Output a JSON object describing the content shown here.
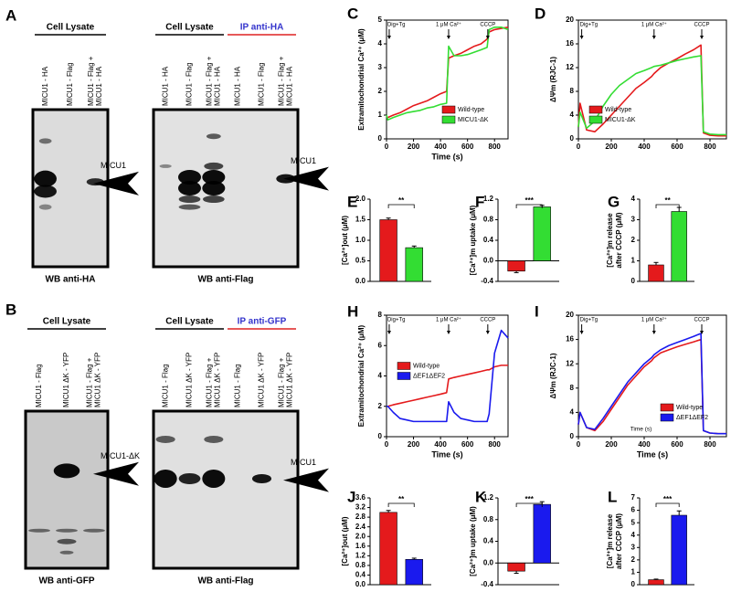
{
  "blots": [
    {
      "label": "A",
      "panels": [
        {
          "headers": [
            {
              "text": "Cell Lysate",
              "color": "#000000",
              "underline": "#000000"
            }
          ],
          "lanes": [
            [
              "MICU1 - HA"
            ],
            [
              "MICU1 - Flag"
            ],
            [
              "MICU1 - Flag +",
              "MICU1 - HA"
            ]
          ],
          "band_label": "MICU1",
          "caption": "WB anti-HA"
        },
        {
          "headers": [
            {
              "text": "Cell Lysate",
              "color": "#000000",
              "underline": "#000000"
            },
            {
              "text": "IP anti-HA",
              "color": "#3333cc",
              "underline": "#dd2222"
            }
          ],
          "lanes": [
            [
              "MICU1 - HA"
            ],
            [
              "MICU1 - Flag"
            ],
            [
              "MICU1 - Flag +",
              "MICU1 - HA"
            ],
            [
              "MICU1 - HA"
            ],
            [
              "MICU1 - Flag"
            ],
            [
              "MICU1 - Flag +",
              "MICU1 - HA"
            ]
          ],
          "band_label": "MICU1",
          "caption": "WB anti-Flag"
        }
      ]
    },
    {
      "label": "B",
      "panels": [
        {
          "headers": [
            {
              "text": "Cell Lysate",
              "color": "#000000",
              "underline": "#000000"
            }
          ],
          "lanes": [
            [
              "MICU1 - Flag"
            ],
            [
              "MICU1 ΔK - YFP"
            ],
            [
              "MICU1 - Flag +",
              "MICU1 ΔK - YFP"
            ]
          ],
          "band_label": "MICU1-ΔK",
          "caption": "WB anti-GFP"
        },
        {
          "headers": [
            {
              "text": "Cell Lysate",
              "color": "#000000",
              "underline": "#000000"
            },
            {
              "text": "IP anti-GFP",
              "color": "#3333cc",
              "underline": "#dd2222"
            }
          ],
          "lanes": [
            [
              "MICU1 - Flag"
            ],
            [
              "MICU1 ΔK - YFP"
            ],
            [
              "MICU1 - Flag +",
              "MICU1 ΔK - YFP"
            ],
            [
              "MICU1 - Flag"
            ],
            [
              "MICU1 ΔK - YFP"
            ],
            [
              "MICU1 - Flag +",
              "MICU1 ΔK - YFP"
            ]
          ],
          "band_label": "MICU1",
          "caption": "WB anti-Flag"
        }
      ]
    }
  ],
  "chart_data": [
    {
      "type": "line",
      "label": "C",
      "xlabel": "Time (s)",
      "ylabel": "Extramitochondrial Ca²⁺ (μM)",
      "xlim": [
        0,
        900
      ],
      "xticks": [
        0,
        200,
        400,
        600,
        800
      ],
      "ylim": [
        0,
        5
      ],
      "yticks": [
        0,
        1,
        2,
        3,
        4,
        5
      ],
      "x": [
        0,
        10,
        50,
        100,
        150,
        200,
        250,
        300,
        350,
        400,
        445,
        460,
        500,
        550,
        600,
        650,
        700,
        745,
        760,
        800,
        850,
        900
      ],
      "series": [
        {
          "name": "Wild-type",
          "color": "#e41a1c",
          "values": [
            0.9,
            0.9,
            1.0,
            1.1,
            1.25,
            1.4,
            1.5,
            1.6,
            1.75,
            1.9,
            2.0,
            3.4,
            3.5,
            3.6,
            3.75,
            3.9,
            4.0,
            4.2,
            4.5,
            4.6,
            4.65,
            4.7
          ]
        },
        {
          "name": "MICU1-ΔK",
          "color": "#33dd33",
          "values": [
            1.0,
            0.8,
            0.9,
            1.0,
            1.1,
            1.15,
            1.2,
            1.3,
            1.35,
            1.45,
            1.5,
            3.9,
            3.5,
            3.5,
            3.55,
            3.65,
            3.75,
            3.85,
            4.6,
            4.7,
            4.7,
            4.6
          ]
        }
      ],
      "events": [
        {
          "label": "Dig+Tg",
          "x": 20
        },
        {
          "label": "1 μM Ca²⁺",
          "x": 460
        },
        {
          "label": "CCCP",
          "x": 750
        }
      ],
      "legend": "lower right"
    },
    {
      "type": "line",
      "label": "D",
      "ylabel": "ΔΨm (RJC-1)",
      "xlim": [
        0,
        900
      ],
      "xticks": [
        0,
        200,
        400,
        600,
        800
      ],
      "ylim": [
        0,
        20
      ],
      "yticks": [
        0,
        4,
        8,
        12,
        16,
        20
      ],
      "x": [
        0,
        10,
        50,
        100,
        150,
        200,
        250,
        300,
        350,
        400,
        445,
        460,
        500,
        550,
        600,
        650,
        700,
        745,
        760,
        800,
        850,
        900
      ],
      "series": [
        {
          "name": "Wild-type",
          "color": "#e41a1c",
          "values": [
            2,
            6,
            1.5,
            1.2,
            2.5,
            4,
            5.5,
            7,
            8.5,
            9.5,
            10.5,
            11,
            12,
            12.8,
            13.5,
            14.3,
            15,
            15.8,
            1,
            0.6,
            0.5,
            0.5
          ]
        },
        {
          "name": "MICU1-ΔK",
          "color": "#33dd33",
          "values": [
            2,
            4.5,
            1.8,
            3,
            5.5,
            7.5,
            9,
            10,
            11,
            11.5,
            12,
            12.2,
            12.4,
            12.8,
            13.2,
            13.5,
            13.8,
            14,
            1.2,
            0.8,
            0.7,
            0.7
          ]
        }
      ],
      "events": [
        {
          "label": "Dig+Tg",
          "x": 20
        },
        {
          "label": "1 μM Ca²⁺",
          "x": 460
        },
        {
          "label": "CCCP",
          "x": 750
        }
      ],
      "legend": "lower left"
    },
    {
      "type": "bar",
      "label": "E",
      "ylabel": "[Ca²⁺]out (μM)",
      "ylim": [
        0,
        2
      ],
      "yticks": [
        {
          "value": 0,
          "label": "0.0"
        },
        0.5,
        {
          "value": 1,
          "label": "1.0"
        },
        1.5,
        {
          "value": 2,
          "label": "2.0"
        }
      ],
      "values": [
        1.5,
        0.82
      ],
      "errors": [
        0.04,
        0.04
      ],
      "colors": [
        "#e41a1c",
        "#33dd33"
      ],
      "significance": "**"
    },
    {
      "type": "bar",
      "label": "F",
      "ylabel": "[Ca²⁺]m uptake (μM)",
      "ylim": [
        -0.4,
        1.2
      ],
      "yticks": [
        -0.4,
        {
          "value": 0,
          "label": "0.0"
        },
        0.4,
        0.8,
        1.2
      ],
      "values": [
        -0.2,
        1.05
      ],
      "errors": [
        0.03,
        0.03
      ],
      "colors": [
        "#e41a1c",
        "#33dd33"
      ],
      "significance": "***"
    },
    {
      "type": "bar",
      "label": "G",
      "ylabel": [
        "[Ca²⁺]m release",
        "after CCCP (μM)"
      ],
      "ylim": [
        0,
        4
      ],
      "yticks": [
        0,
        1,
        2,
        3,
        4
      ],
      "values": [
        0.8,
        3.4
      ],
      "errors": [
        0.12,
        0.2
      ],
      "colors": [
        "#e41a1c",
        "#33dd33"
      ],
      "significance": "**"
    },
    {
      "type": "line",
      "label": "H",
      "xlabel": "Time (s)",
      "ylabel": "Extramitochondrial Ca²⁺ (μM)",
      "xlim": [
        0,
        900
      ],
      "xticks": [
        0,
        200,
        400,
        600,
        800
      ],
      "ylim": [
        0,
        8
      ],
      "yticks": [
        0,
        2,
        4,
        6,
        8
      ],
      "x": [
        0,
        10,
        50,
        100,
        150,
        200,
        250,
        300,
        350,
        400,
        445,
        460,
        500,
        550,
        600,
        650,
        700,
        745,
        760,
        800,
        850,
        900
      ],
      "series": [
        {
          "name": "Wild-type",
          "color": "#e41a1c",
          "values": [
            2,
            2,
            2.1,
            2.2,
            2.3,
            2.4,
            2.5,
            2.6,
            2.7,
            2.8,
            2.9,
            3.8,
            3.9,
            4.0,
            4.1,
            4.2,
            4.3,
            4.4,
            4.4,
            4.6,
            4.7,
            4.7
          ]
        },
        {
          "name": "ΔEF1ΔEF2",
          "color": "#1a1aee",
          "values": [
            2,
            2,
            1.6,
            1.2,
            1.1,
            1.0,
            1.0,
            1.0,
            1.0,
            1.0,
            1.0,
            2.3,
            1.6,
            1.2,
            1.1,
            1.0,
            1.0,
            1.0,
            1.5,
            5.5,
            7.0,
            6.5
          ]
        }
      ],
      "events": [
        {
          "label": "Dig+Tg",
          "x": 20
        },
        {
          "label": "1 μM Ca²⁺",
          "x": 460
        },
        {
          "label": "CCCP",
          "x": 750
        }
      ],
      "legend": "center left"
    },
    {
      "type": "line",
      "label": "I",
      "xlabel": "Time (s)",
      "ylabel": "ΔΨm (RJC-1)",
      "note": "Time (s)",
      "xlim": [
        0,
        900
      ],
      "xticks": [
        0,
        200,
        400,
        600,
        800
      ],
      "ylim": [
        0,
        20
      ],
      "yticks": [
        0,
        4,
        8,
        12,
        16,
        20
      ],
      "x": [
        0,
        10,
        50,
        100,
        150,
        200,
        250,
        300,
        350,
        400,
        445,
        460,
        500,
        550,
        600,
        650,
        700,
        745,
        760,
        800,
        850,
        900
      ],
      "series": [
        {
          "name": "Wild-type",
          "color": "#e41a1c",
          "values": [
            2,
            4,
            1.5,
            1,
            2.5,
            4.5,
            6.5,
            8.5,
            10,
            11.5,
            12.5,
            13,
            13.8,
            14.3,
            14.8,
            15.2,
            15.6,
            16,
            1,
            0.6,
            0.5,
            0.5
          ]
        },
        {
          "name": "ΔEF1ΔEF2",
          "color": "#1a1aee",
          "values": [
            2,
            4,
            1.5,
            1.2,
            3,
            5,
            7,
            9,
            10.5,
            12,
            13,
            13.5,
            14.3,
            15,
            15.5,
            16,
            16.5,
            17,
            1,
            0.6,
            0.5,
            0.5
          ]
        }
      ],
      "events": [
        {
          "label": "Dig+Tg",
          "x": 20
        },
        {
          "label": "1 μM Ca²⁺",
          "x": 460
        },
        {
          "label": "CCCP",
          "x": 750
        }
      ],
      "legend": "lower right"
    },
    {
      "type": "bar",
      "label": "J",
      "ylabel": "[Ca²⁺]out (μM)",
      "ylim": [
        0,
        3.6
      ],
      "yticks": [
        {
          "value": 0,
          "label": "0.0"
        },
        0.4,
        0.8,
        1.2,
        1.6,
        {
          "value": 2,
          "label": "2.0"
        },
        2.4,
        2.8,
        3.2,
        3.6
      ],
      "values": [
        3.0,
        1.05
      ],
      "errors": [
        0.08,
        0.05
      ],
      "colors": [
        "#e41a1c",
        "#1a1aee"
      ],
      "significance": "**"
    },
    {
      "type": "bar",
      "label": "K",
      "ylabel": "[Ca²⁺]m uptake (μM)",
      "ylim": [
        -0.4,
        1.2
      ],
      "yticks": [
        -0.4,
        {
          "value": 0,
          "label": "0.0"
        },
        0.4,
        0.8,
        1.2
      ],
      "values": [
        -0.15,
        1.08
      ],
      "errors": [
        0.04,
        0.05
      ],
      "colors": [
        "#e41a1c",
        "#1a1aee"
      ],
      "significance": "***"
    },
    {
      "type": "bar",
      "label": "L",
      "ylabel": [
        "[Ca²⁺]m release",
        "after CCCP (μM)"
      ],
      "ylim": [
        0,
        7
      ],
      "yticks": [
        0,
        1,
        2,
        3,
        4,
        5,
        6,
        7
      ],
      "values": [
        0.4,
        5.6
      ],
      "errors": [
        0.05,
        0.35
      ],
      "colors": [
        "#e41a1c",
        "#1a1aee"
      ],
      "significance": "***"
    }
  ]
}
